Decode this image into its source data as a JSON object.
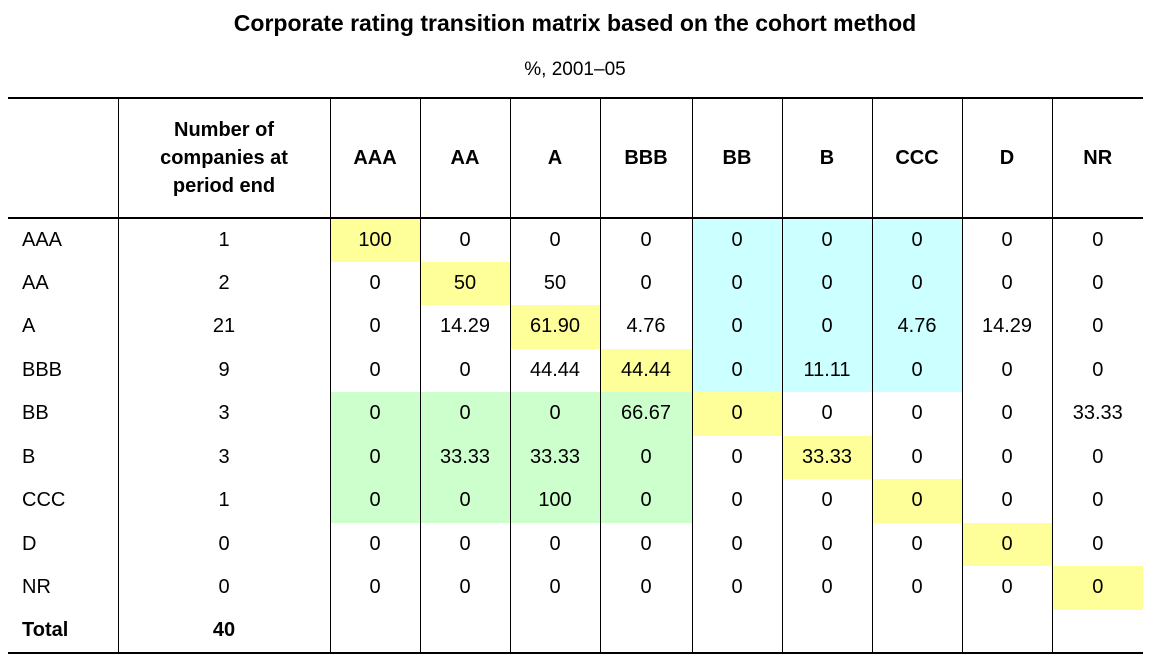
{
  "title": "Corporate rating transition matrix based on the cohort method",
  "subtitle": "%, 2001–05",
  "colors": {
    "diagonal": "#ffff99",
    "upgrade_region": "#ccffcc",
    "downgrade_region": "#ccffff"
  },
  "table": {
    "corner_header": "",
    "count_header": "Number of companies at period end",
    "columns": [
      "AAA",
      "AA",
      "A",
      "BBB",
      "BB",
      "B",
      "CCC",
      "D",
      "NR"
    ],
    "rows": [
      {
        "rating": "AAA",
        "count": "1",
        "values": [
          "100",
          "0",
          "0",
          "0",
          "0",
          "0",
          "0",
          "0",
          "0"
        ]
      },
      {
        "rating": "AA",
        "count": "2",
        "values": [
          "0",
          "50",
          "50",
          "0",
          "0",
          "0",
          "0",
          "0",
          "0"
        ]
      },
      {
        "rating": "A",
        "count": "21",
        "values": [
          "0",
          "14.29",
          "61.90",
          "4.76",
          "0",
          "0",
          "4.76",
          "14.29",
          "0"
        ]
      },
      {
        "rating": "BBB",
        "count": "9",
        "values": [
          "0",
          "0",
          "44.44",
          "44.44",
          "0",
          "11.11",
          "0",
          "0",
          "0"
        ]
      },
      {
        "rating": "BB",
        "count": "3",
        "values": [
          "0",
          "0",
          "0",
          "66.67",
          "0",
          "0",
          "0",
          "0",
          "33.33"
        ]
      },
      {
        "rating": "B",
        "count": "3",
        "values": [
          "0",
          "33.33",
          "33.33",
          "0",
          "0",
          "33.33",
          "0",
          "0",
          "0"
        ]
      },
      {
        "rating": "CCC",
        "count": "1",
        "values": [
          "0",
          "0",
          "100",
          "0",
          "0",
          "0",
          "0",
          "0",
          "0"
        ]
      },
      {
        "rating": "D",
        "count": "0",
        "values": [
          "0",
          "0",
          "0",
          "0",
          "0",
          "0",
          "0",
          "0",
          "0"
        ]
      },
      {
        "rating": "NR",
        "count": "0",
        "values": [
          "0",
          "0",
          "0",
          "0",
          "0",
          "0",
          "0",
          "0",
          "0"
        ]
      }
    ],
    "total": {
      "label": "Total",
      "count": "40"
    }
  }
}
